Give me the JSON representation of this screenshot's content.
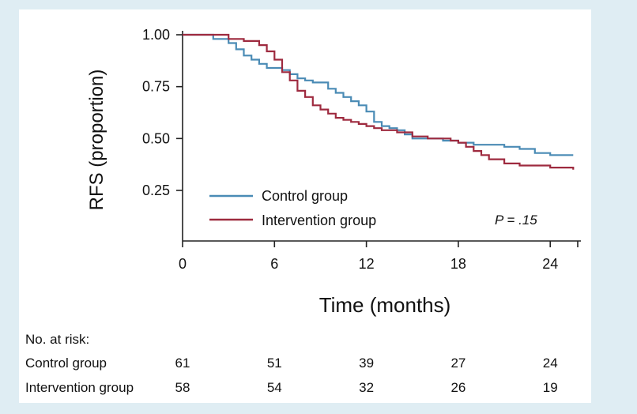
{
  "chart_data": {
    "type": "line",
    "subtype": "kaplan-meier step",
    "title": "",
    "ylabel": "RFS (proportion)",
    "xlabel": "Time (months)",
    "xlim": [
      0,
      26
    ],
    "ylim": [
      0.0,
      1.0
    ],
    "x_ticks": [
      "0",
      "6",
      "12",
      "18",
      "24"
    ],
    "y_ticks": [
      "1.00",
      "0.75",
      "0.50",
      "0.25"
    ],
    "annotation": "P = .15",
    "legend_position": "bottom-left",
    "grid": false,
    "series": [
      {
        "name": "Control group",
        "color": "#4a8bb5",
        "x": [
          0,
          2,
          3,
          3.5,
          4,
          4.5,
          5,
          5.5,
          6,
          6.5,
          7,
          7.5,
          8,
          8.5,
          9,
          9.5,
          10,
          10.5,
          11,
          11.5,
          12,
          12.5,
          13,
          13.5,
          14,
          14.5,
          15,
          16,
          17,
          18,
          19,
          20,
          21,
          22,
          23,
          24,
          25.5
        ],
        "y": [
          1.0,
          0.98,
          0.96,
          0.93,
          0.9,
          0.88,
          0.86,
          0.84,
          0.84,
          0.83,
          0.81,
          0.79,
          0.78,
          0.77,
          0.77,
          0.74,
          0.72,
          0.7,
          0.68,
          0.66,
          0.63,
          0.58,
          0.56,
          0.55,
          0.54,
          0.52,
          0.5,
          0.5,
          0.49,
          0.48,
          0.47,
          0.47,
          0.46,
          0.45,
          0.43,
          0.42,
          0.42
        ]
      },
      {
        "name": "Intervention group",
        "color": "#9e2a3f",
        "x": [
          0,
          3,
          4,
          5,
          5.5,
          6,
          6.5,
          7,
          7.5,
          8,
          8.5,
          9,
          9.5,
          10,
          10.5,
          11,
          11.5,
          12,
          12.5,
          13,
          14,
          15,
          16,
          17,
          17.5,
          18,
          18.5,
          19,
          19.5,
          20,
          21,
          22,
          23,
          24,
          25.5
        ],
        "y": [
          1.0,
          0.98,
          0.97,
          0.95,
          0.92,
          0.88,
          0.82,
          0.78,
          0.73,
          0.7,
          0.66,
          0.64,
          0.62,
          0.6,
          0.59,
          0.58,
          0.57,
          0.56,
          0.55,
          0.54,
          0.53,
          0.51,
          0.5,
          0.5,
          0.49,
          0.48,
          0.46,
          0.44,
          0.42,
          0.4,
          0.38,
          0.37,
          0.37,
          0.36,
          0.35
        ]
      }
    ]
  },
  "risk_table": {
    "title": "No. at risk:",
    "rows": [
      {
        "label": "Control group",
        "values": [
          "61",
          "51",
          "39",
          "27",
          "24"
        ]
      },
      {
        "label": "Intervention group",
        "values": [
          "58",
          "54",
          "32",
          "26",
          "19"
        ]
      }
    ]
  }
}
